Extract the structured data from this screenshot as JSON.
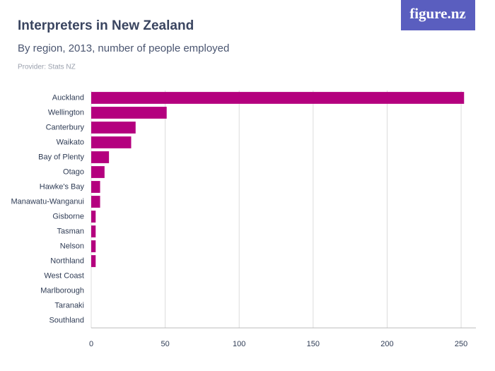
{
  "logo": "figure.nz",
  "chart_data": {
    "type": "barh",
    "title": "Interpreters in New Zealand",
    "subtitle": "By region, 2013, number of people employed",
    "source": "Provider: Stats NZ",
    "categories": [
      "Auckland",
      "Wellington",
      "Canterbury",
      "Waikato",
      "Bay of Plenty",
      "Otago",
      "Hawke's Bay",
      "Manawatu-Wanganui",
      "Gisborne",
      "Tasman",
      "Nelson",
      "Northland",
      "West Coast",
      "Marlborough",
      "Taranaki",
      "Southland"
    ],
    "values": [
      252,
      51,
      30,
      27,
      12,
      9,
      6,
      6,
      3,
      3,
      3,
      3,
      0,
      0,
      0,
      0
    ],
    "color": "#b4007e",
    "xlim": [
      0,
      260
    ],
    "xticks": [
      0,
      50,
      100,
      150,
      200,
      250
    ],
    "grid": true
  }
}
